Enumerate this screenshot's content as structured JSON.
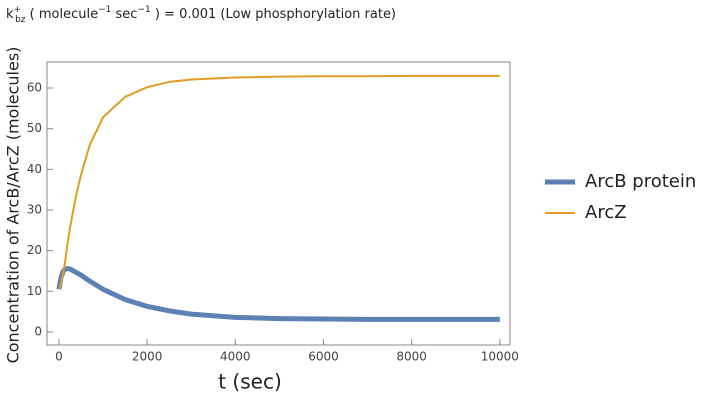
{
  "chart_data": {
    "type": "line",
    "title": [
      "k",
      "+",
      "bz",
      " ( molecule",
      "−1",
      " sec",
      "−1",
      " ) = 0.001 (Low phosphorylation rate)"
    ],
    "x_label": "t (sec)",
    "y_label": "Concentration of  ArcB/ArcZ (molecules)",
    "x": [
      0,
      50,
      100,
      150,
      200,
      250,
      300,
      400,
      500,
      700,
      1000,
      1500,
      2000,
      2500,
      3000,
      4000,
      5000,
      6000,
      7000,
      8000,
      9000,
      10000
    ],
    "series": [
      {
        "name": "ArcB protein",
        "color": "#5e81b5",
        "values": [
          10.5,
          13.5,
          15,
          15.5,
          15.6,
          15.5,
          15.2,
          14.6,
          14,
          12.5,
          10.5,
          8,
          6.3,
          5.2,
          4.4,
          3.6,
          3.3,
          3.2,
          3.1,
          3.1,
          3.1,
          3.1
        ]
      },
      {
        "name": "ArcZ",
        "color": "#e19c24",
        "values": [
          10.5,
          12,
          14.5,
          18,
          22,
          25.5,
          28.5,
          34,
          38.6,
          46,
          52.8,
          57.8,
          60.2,
          61.5,
          62.1,
          62.6,
          62.8,
          62.9,
          62.9,
          63,
          63,
          63
        ]
      }
    ],
    "xlim": [
      -270,
      10230
    ],
    "ylim": [
      -3.2,
      66.4
    ],
    "xticks": [
      0,
      2000,
      4000,
      6000,
      8000,
      10000
    ],
    "yticks": [
      0,
      10,
      20,
      30,
      40,
      50,
      60
    ],
    "grid": false,
    "legend": "right"
  }
}
